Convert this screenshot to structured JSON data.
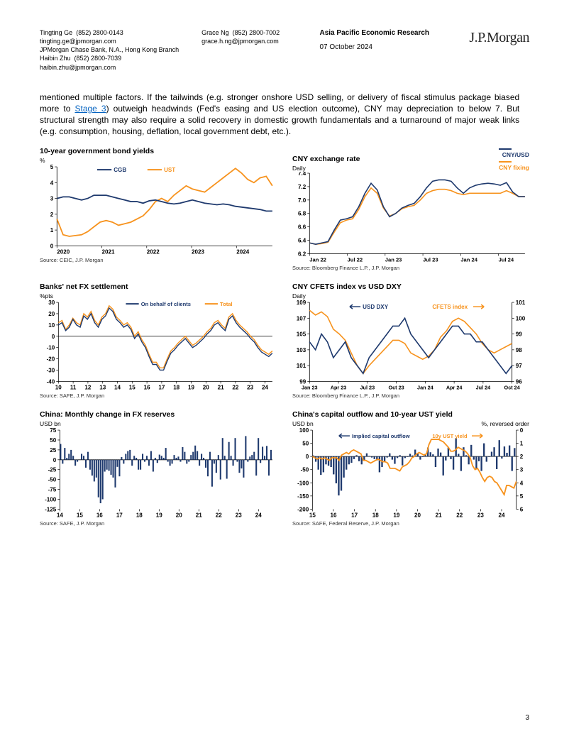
{
  "header": {
    "authors_col1": [
      {
        "name": "Tingting Ge",
        "phone": "(852) 2800-0143",
        "email": "tingting.ge@jpmorgan.com",
        "affiliation": "JPMorgan Chase Bank, N.A., Hong Kong Branch"
      },
      {
        "name": "Haibin Zhu",
        "phone": "(852) 2800-7039",
        "email": "haibin.zhu@jpmorgan.com"
      }
    ],
    "authors_col2": [
      {
        "name": "Grace Ng",
        "phone": "(852) 2800-7002",
        "email": "grace.h.ng@jpmorgan.com"
      }
    ],
    "dept": "Asia Pacific Economic Research",
    "date": "07 October 2024",
    "brand": "J.P.Morgan"
  },
  "paragraph": {
    "pre": "mentioned multiple factors. If the tailwinds (e.g. stronger onshore USD selling, or delivery of fiscal stimulus package biased more to ",
    "link": "Stage 3",
    "post": ") outweigh headwinds (Fed's easing and US election outcome), CNY may depreciation to below 7. But structural strength may also require a solid recovery in domestic growth fundamentals and a turnaround of major weak links (e.g. consumption, housing, deflation, local government debt, etc.)."
  },
  "colors": {
    "series_navy": "#1f3a6e",
    "series_orange": "#f7931e",
    "axis": "#000000",
    "grid": "#cccccc",
    "bar_navy": "#1f3a6e"
  },
  "charts": {
    "c1": {
      "title": "10-year government bond yields",
      "sub": "%",
      "legend": [
        {
          "label": "CGB",
          "color": "#1f3a6e"
        },
        {
          "label": "UST",
          "color": "#f7931e"
        }
      ],
      "x_ticks": [
        "2020",
        "2021",
        "2022",
        "2023",
        "2024"
      ],
      "y_ticks": [
        "0",
        "1",
        "2",
        "3",
        "4",
        "5"
      ],
      "ylim": [
        0,
        5
      ],
      "series": {
        "cgb": [
          3.0,
          3.1,
          3.1,
          3.0,
          2.9,
          3.0,
          3.2,
          3.2,
          3.2,
          3.1,
          3.0,
          2.9,
          2.8,
          2.8,
          2.7,
          2.85,
          2.9,
          2.8,
          2.7,
          2.65,
          2.7,
          2.8,
          2.9,
          2.8,
          2.7,
          2.65,
          2.6,
          2.65,
          2.6,
          2.5,
          2.45,
          2.4,
          2.35,
          2.3,
          2.2,
          2.2
        ],
        "ust": [
          1.7,
          0.7,
          0.6,
          0.65,
          0.7,
          0.9,
          1.2,
          1.5,
          1.6,
          1.5,
          1.3,
          1.4,
          1.5,
          1.7,
          1.9,
          2.3,
          2.8,
          3.0,
          2.8,
          3.2,
          3.5,
          3.8,
          3.6,
          3.5,
          3.4,
          3.7,
          4.0,
          4.3,
          4.6,
          4.9,
          4.6,
          4.2,
          4.0,
          4.3,
          4.4,
          3.8
        ]
      },
      "source": "Source: CEIC, J.P. Morgan"
    },
    "c2": {
      "title": "CNY exchange rate",
      "sub": "Daily",
      "legend": [
        {
          "label": "CNY/USD",
          "color": "#1f3a6e"
        },
        {
          "label": "CNY fixing",
          "color": "#f7931e"
        }
      ],
      "x_ticks": [
        "Jan 22",
        "Jul 22",
        "Jan 23",
        "Jul 23",
        "Jan 24",
        "Jul 24"
      ],
      "y_ticks": [
        "6.2",
        "6.4",
        "6.6",
        "6.8",
        "7.0",
        "7.2",
        "7.4"
      ],
      "ylim": [
        6.2,
        7.4
      ],
      "series": {
        "cnyusd": [
          6.36,
          6.34,
          6.36,
          6.38,
          6.55,
          6.7,
          6.72,
          6.75,
          6.9,
          7.1,
          7.25,
          7.15,
          6.9,
          6.75,
          6.8,
          6.88,
          6.92,
          6.95,
          7.05,
          7.18,
          7.28,
          7.3,
          7.3,
          7.28,
          7.18,
          7.1,
          7.18,
          7.22,
          7.24,
          7.25,
          7.24,
          7.22,
          7.26,
          7.12,
          7.05,
          7.05
        ],
        "fixing": [
          6.36,
          6.34,
          6.35,
          6.37,
          6.52,
          6.66,
          6.7,
          6.72,
          6.86,
          7.05,
          7.18,
          7.1,
          6.88,
          6.76,
          6.8,
          6.87,
          6.9,
          6.92,
          7.0,
          7.1,
          7.14,
          7.16,
          7.16,
          7.14,
          7.1,
          7.08,
          7.1,
          7.1,
          7.1,
          7.1,
          7.1,
          7.1,
          7.14,
          7.1,
          7.05,
          7.05
        ]
      },
      "source": "Source: Bloomberg Finance L.P., J.P. Morgan"
    },
    "c3": {
      "title": "Banks' net FX settlement",
      "sub": "%pts",
      "legend": [
        {
          "label": "On behalf of clients",
          "color": "#1f3a6e"
        },
        {
          "label": "Total",
          "color": "#f7931e"
        }
      ],
      "x_ticks": [
        "10",
        "11",
        "12",
        "13",
        "14",
        "15",
        "16",
        "17",
        "18",
        "19",
        "20",
        "21",
        "22",
        "23",
        "24"
      ],
      "y_ticks": [
        "-40",
        "-30",
        "-20",
        "-10",
        "0",
        "10",
        "20",
        "30"
      ],
      "ylim": [
        -40,
        30
      ],
      "series": {
        "clients": [
          10,
          12,
          5,
          8,
          15,
          10,
          8,
          18,
          15,
          20,
          12,
          8,
          15,
          18,
          25,
          22,
          15,
          12,
          8,
          10,
          6,
          -2,
          2,
          -5,
          -10,
          -18,
          -25,
          -25,
          -30,
          -30,
          -22,
          -15,
          -12,
          -8,
          -5,
          -2,
          -6,
          -10,
          -8,
          -5,
          -2,
          2,
          5,
          10,
          12,
          8,
          5,
          15,
          18,
          12,
          8,
          5,
          2,
          -2,
          -5,
          -10,
          -14,
          -16,
          -18,
          -15
        ],
        "total": [
          12,
          14,
          6,
          10,
          16,
          12,
          10,
          20,
          17,
          22,
          14,
          10,
          17,
          20,
          27,
          24,
          17,
          14,
          10,
          12,
          8,
          0,
          4,
          -3,
          -8,
          -16,
          -23,
          -23,
          -28,
          -28,
          -20,
          -13,
          -10,
          -6,
          -3,
          0,
          -4,
          -8,
          -6,
          -3,
          0,
          4,
          7,
          12,
          14,
          10,
          7,
          17,
          20,
          14,
          10,
          7,
          4,
          0,
          -3,
          -8,
          -12,
          -14,
          -16,
          -13
        ]
      },
      "source": "Source: SAFE, J.P. Morgan"
    },
    "c4": {
      "title": "CNY CFETS index vs USD DXY",
      "sub_left": "Daily",
      "legend": [
        {
          "label": "USD DXY",
          "color": "#1f3a6e",
          "arrow": "left"
        },
        {
          "label": "CFETS index",
          "color": "#f7931e",
          "arrow": "right"
        }
      ],
      "x_ticks": [
        "Jan 23",
        "Apr 23",
        "Jul 23",
        "Oct 23",
        "Jan 24",
        "Apr 24",
        "Jul 24",
        "Oct 24"
      ],
      "y_left_ticks": [
        "99",
        "101",
        "103",
        "105",
        "107",
        "109"
      ],
      "y_left_lim": [
        99,
        109
      ],
      "y_right_ticks": [
        "96",
        "97",
        "98",
        "99",
        "100",
        "101"
      ],
      "y_right_lim": [
        96,
        101
      ],
      "series": {
        "dxy": [
          104,
          103,
          105,
          104,
          102,
          103,
          104,
          102,
          101,
          100,
          102,
          103,
          104,
          105,
          106,
          106,
          107,
          105,
          104,
          103,
          102,
          103,
          104,
          105,
          106,
          106,
          105,
          105,
          104,
          104,
          103,
          102,
          101,
          100,
          101
        ],
        "cfets": [
          100.5,
          100.2,
          100.4,
          100.1,
          99.3,
          99.0,
          98.6,
          97.8,
          97.0,
          96.5,
          97.0,
          97.4,
          97.8,
          98.2,
          98.6,
          98.6,
          98.4,
          97.8,
          97.6,
          97.4,
          97.6,
          98.0,
          98.8,
          99.2,
          99.8,
          100.0,
          99.8,
          99.4,
          99.0,
          98.4,
          98.0,
          97.8,
          98.0,
          98.2,
          98.4
        ]
      },
      "source": "Source: Bloomberg Finance L.P., J.P. Morgan"
    },
    "c5": {
      "title": "China: Monthly change in FX reserves",
      "sub": "USD bn",
      "x_ticks": [
        "14",
        "15",
        "16",
        "17",
        "18",
        "19",
        "20",
        "21",
        "22",
        "23",
        "24"
      ],
      "y_ticks": [
        "-125",
        "-100",
        "-75",
        "-50",
        "-25",
        "0",
        "25",
        "50",
        "75"
      ],
      "ylim": [
        -125,
        75
      ],
      "data": [
        40,
        -10,
        30,
        5,
        15,
        25,
        10,
        -15,
        -5,
        0,
        15,
        10,
        -20,
        20,
        -25,
        -40,
        -55,
        -45,
        -95,
        -110,
        -100,
        -30,
        -25,
        -28,
        -38,
        -45,
        -70,
        -18,
        -42,
        7,
        -10,
        15,
        22,
        25,
        -15,
        10,
        5,
        -25,
        -25,
        15,
        -5,
        10,
        -15,
        22,
        -30,
        5,
        -8,
        13,
        10,
        5,
        30,
        -5,
        -15,
        -10,
        12,
        5,
        8,
        -5,
        32,
        20,
        -10,
        -5,
        12,
        20,
        36,
        22,
        -15,
        15,
        5,
        -20,
        -42,
        20,
        -68,
        -10,
        -33,
        12,
        -50,
        55,
        10,
        -48,
        45,
        10,
        -15,
        55,
        -5,
        -33,
        -22,
        -45,
        60,
        -5,
        8,
        12,
        20,
        -40,
        55,
        -8,
        33,
        10,
        35,
        -40,
        25
      ],
      "source": "Source: SAFE, J.P. Morgan"
    },
    "c6": {
      "title": "China's capital outflow and 10-year UST yield",
      "sub_left": "USD bn",
      "sub_right": "%, reversed order",
      "legend": [
        {
          "label": "Implied capital outflow",
          "color": "#1f3a6e",
          "arrow": "left"
        },
        {
          "label": "10y UST yield",
          "color": "#f7931e",
          "arrow": "right"
        }
      ],
      "x_ticks": [
        "15",
        "16",
        "17",
        "18",
        "19",
        "20",
        "21",
        "22",
        "23",
        "24"
      ],
      "y_left_ticks": [
        "-200",
        "-150",
        "-100",
        "-50",
        "0",
        "50",
        "100"
      ],
      "y_left_lim": [
        -200,
        100
      ],
      "y_right_ticks": [
        "6",
        "5",
        "4",
        "3",
        "2",
        "1",
        "0"
      ],
      "y_right_lim_top_to_bottom": [
        0,
        6
      ],
      "bars": [
        4,
        -20,
        -50,
        -70,
        -60,
        -30,
        -35,
        -40,
        -68,
        -102,
        -148,
        -130,
        -80,
        -50,
        -30,
        -24,
        -10,
        5,
        -18,
        -30,
        -14,
        12,
        2,
        -4,
        -10,
        -15,
        -60,
        -40,
        -20,
        -4,
        12,
        -12,
        -28,
        -6,
        5,
        -34,
        -6,
        -2,
        10,
        4,
        26,
        12,
        -12,
        -2,
        10,
        34,
        16,
        8,
        -40,
        30,
        15,
        -72,
        -15,
        34,
        -10,
        -50,
        70,
        10,
        -55,
        35,
        5,
        -30,
        44,
        -12,
        -48,
        -18,
        -55,
        50,
        -20,
        -2,
        18,
        35,
        -48,
        62,
        -8,
        38,
        14,
        42,
        -55,
        32
      ],
      "line": [
        2.0,
        2.1,
        2.2,
        2.1,
        2.2,
        2.1,
        2.2,
        2.3,
        2.1,
        2.1,
        2.1,
        2.3,
        1.9,
        1.8,
        1.7,
        1.8,
        1.6,
        1.5,
        1.6,
        1.7,
        1.8,
        2.3,
        2.3,
        2.4,
        2.5,
        2.4,
        2.3,
        2.2,
        2.3,
        2.4,
        2.4,
        2.5,
        2.9,
        2.9,
        2.9,
        3.0,
        3.1,
        2.8,
        2.7,
        2.6,
        2.4,
        2.1,
        2.0,
        1.8,
        1.7,
        1.8,
        1.9,
        1.8,
        1.1,
        0.7,
        0.7,
        0.7,
        0.7,
        0.8,
        0.9,
        1.1,
        1.3,
        1.6,
        1.6,
        1.5,
        1.3,
        1.4,
        1.5,
        1.6,
        1.8,
        2.1,
        2.7,
        3.0,
        2.9,
        3.2,
        3.6,
        3.9,
        3.6,
        3.5,
        3.6,
        3.9,
        4.0,
        4.3,
        4.6,
        4.9,
        4.2,
        4.2,
        4.3,
        4.4,
        3.9
      ],
      "source": "Source: SAFE, Federal Reserve, J.P. Morgan"
    }
  },
  "page_number": "3"
}
